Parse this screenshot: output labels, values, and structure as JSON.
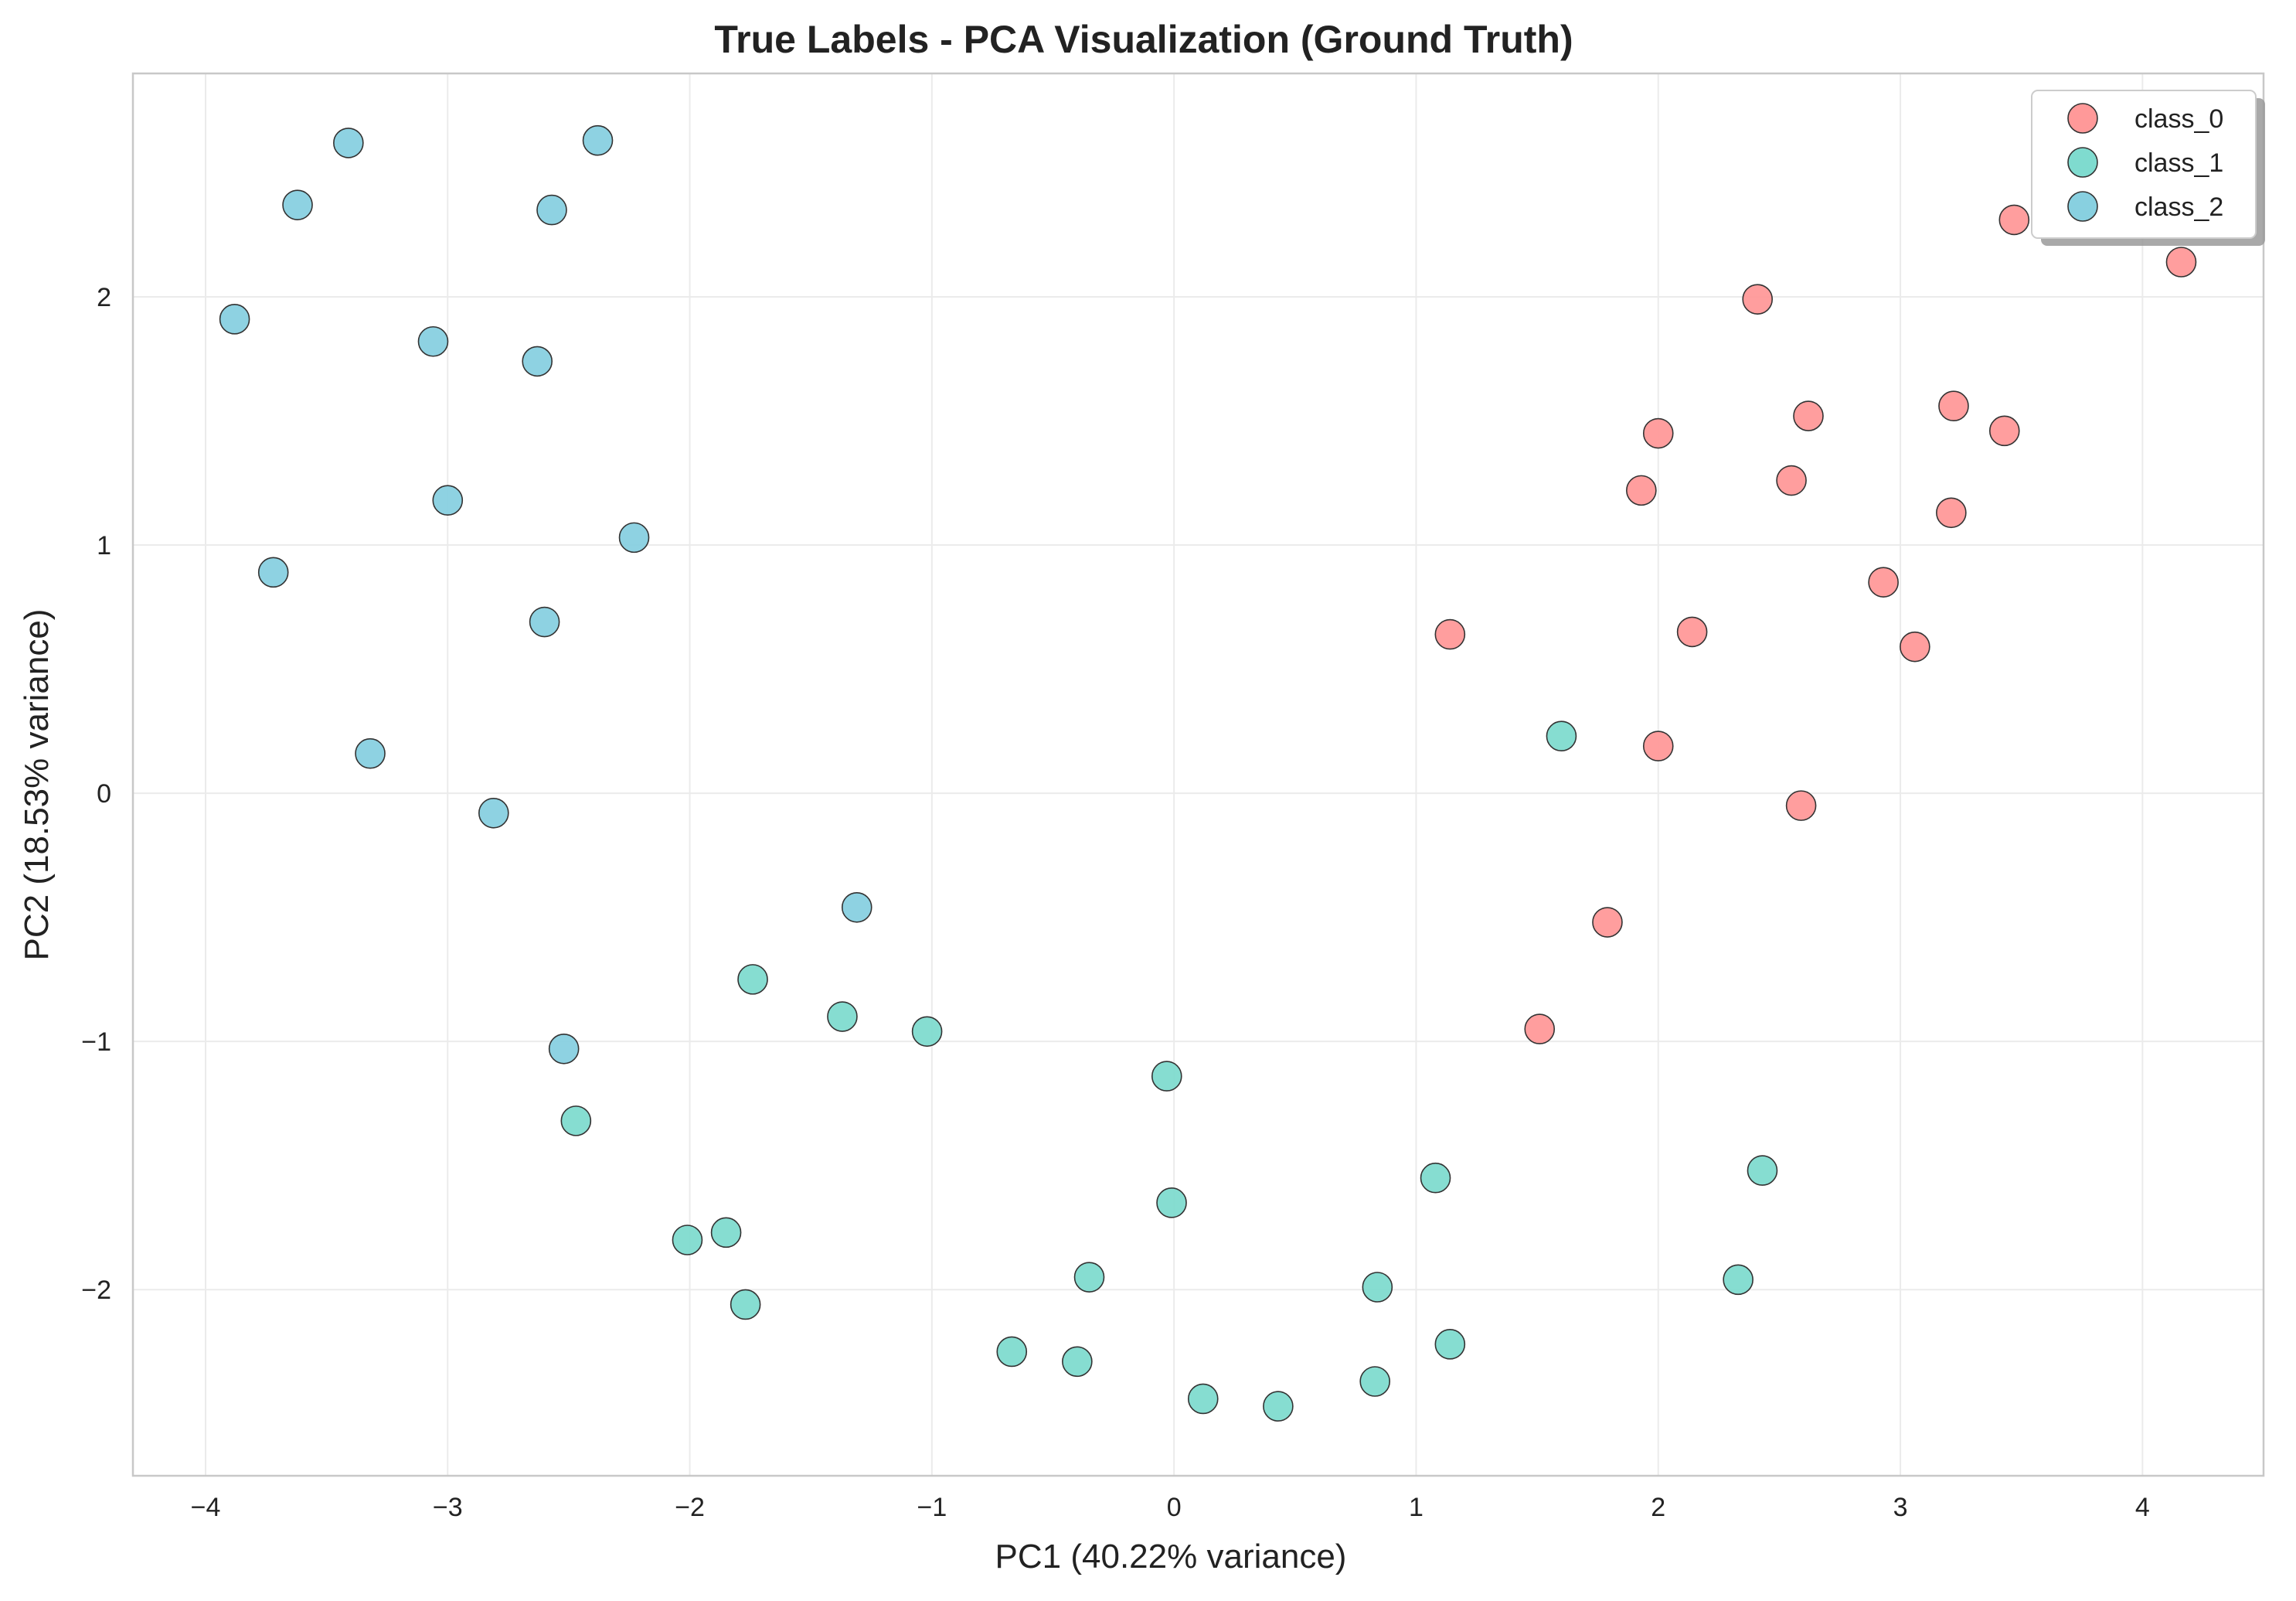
{
  "chart_data": {
    "type": "scatter",
    "title": "True Labels - PCA Visualization (Ground Truth)",
    "xlabel": "PC1 (40.22% variance)",
    "ylabel": "PC2 (18.53% variance)",
    "xlim": [
      -4.3,
      4.5
    ],
    "ylim": [
      -2.75,
      2.9
    ],
    "xticks": [
      -4,
      -3,
      -2,
      -1,
      0,
      1,
      2,
      3,
      4
    ],
    "yticks": [
      -2,
      -1,
      0,
      1,
      2
    ],
    "xtick_labels": [
      "−4",
      "−3",
      "−2",
      "−1",
      "0",
      "1",
      "2",
      "3",
      "4"
    ],
    "ytick_labels": [
      "−2",
      "−1",
      "0",
      "1",
      "2"
    ],
    "grid": true,
    "legend_position": "top-right",
    "series": [
      {
        "name": "class_0",
        "color": "#FF9999",
        "points": [
          [
            3.47,
            2.31
          ],
          [
            4.16,
            2.14
          ],
          [
            2.41,
            1.99
          ],
          [
            2.0,
            1.45
          ],
          [
            2.62,
            1.52
          ],
          [
            3.22,
            1.56
          ],
          [
            3.43,
            1.46
          ],
          [
            1.93,
            1.22
          ],
          [
            2.55,
            1.26
          ],
          [
            3.21,
            1.13
          ],
          [
            2.93,
            0.85
          ],
          [
            3.06,
            0.59
          ],
          [
            1.14,
            0.64
          ],
          [
            2.14,
            0.65
          ],
          [
            2.0,
            0.19
          ],
          [
            2.59,
            -0.05
          ],
          [
            1.79,
            -0.52
          ],
          [
            1.51,
            -0.95
          ]
        ]
      },
      {
        "name": "class_1",
        "color": "#7FDBCF",
        "points": [
          [
            1.6,
            0.23
          ],
          [
            -1.74,
            -0.75
          ],
          [
            -1.37,
            -0.9
          ],
          [
            -1.02,
            -0.96
          ],
          [
            -0.03,
            -1.14
          ],
          [
            -2.47,
            -1.32
          ],
          [
            1.08,
            -1.55
          ],
          [
            2.43,
            -1.52
          ],
          [
            -0.01,
            -1.65
          ],
          [
            -2.01,
            -1.8
          ],
          [
            -1.85,
            -1.77
          ],
          [
            -0.35,
            -1.95
          ],
          [
            0.84,
            -1.99
          ],
          [
            2.33,
            -1.96
          ],
          [
            -1.77,
            -2.06
          ],
          [
            -0.67,
            -2.25
          ],
          [
            -0.4,
            -2.29
          ],
          [
            1.14,
            -2.22
          ],
          [
            0.83,
            -2.37
          ],
          [
            0.12,
            -2.44
          ],
          [
            0.43,
            -2.47
          ]
        ]
      },
      {
        "name": "class_2",
        "color": "#88D0E0",
        "points": [
          [
            -3.41,
            2.62
          ],
          [
            -2.38,
            2.63
          ],
          [
            -3.62,
            2.37
          ],
          [
            -2.57,
            2.35
          ],
          [
            -3.88,
            1.91
          ],
          [
            -3.06,
            1.82
          ],
          [
            -2.63,
            1.74
          ],
          [
            -3.0,
            1.18
          ],
          [
            -2.23,
            1.03
          ],
          [
            -3.72,
            0.89
          ],
          [
            -2.6,
            0.69
          ],
          [
            -3.32,
            0.16
          ],
          [
            -2.81,
            -0.08
          ],
          [
            -1.31,
            -0.46
          ],
          [
            -2.52,
            -1.03
          ]
        ]
      }
    ]
  }
}
